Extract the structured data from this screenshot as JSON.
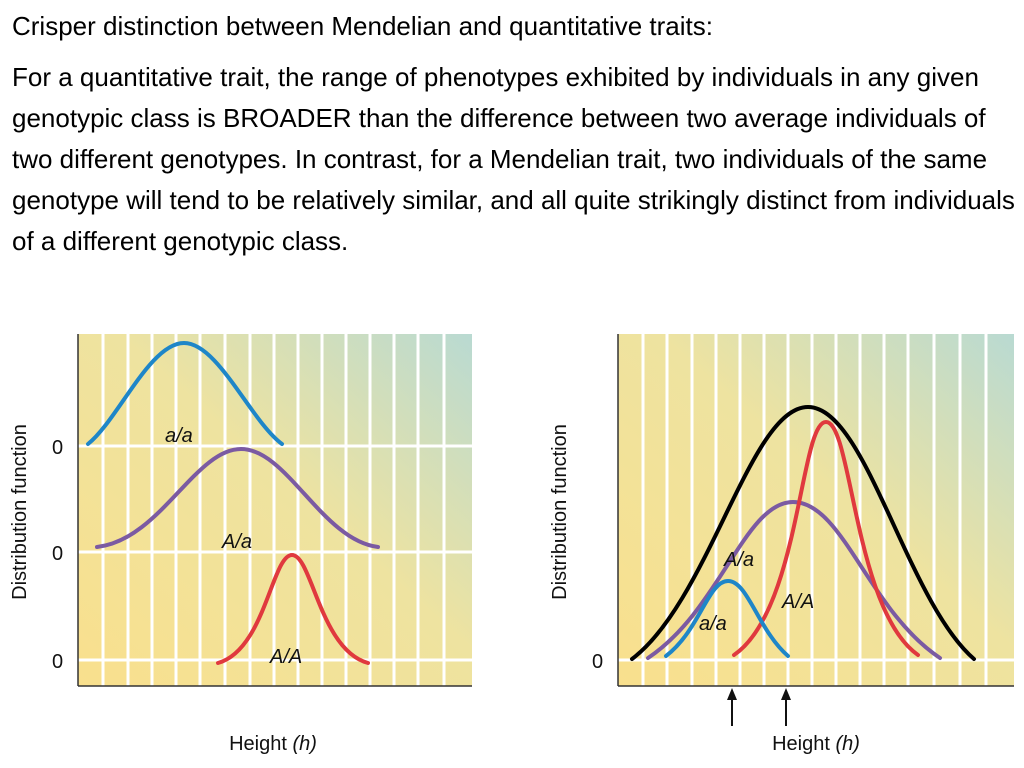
{
  "slide": {
    "title": "Crisper distinction between Mendelian and quantitative traits:",
    "paragraph": "For a quantitative trait, the range of phenotypes exhibited by individuals in any given genotypic class is BROADER than the difference between two average individuals of two different genotypes. In contrast, for a Mendelian trait, two individuals of the same genotype will tend to be relatively similar, and all quite strikingly distinct from individuals of a different genotypic class."
  },
  "left_panel": {
    "ylabel": "Distribution function",
    "xlabel_prefix": "Height ",
    "xlabel_var": "(h)",
    "zero_labels": [
      "0",
      "0",
      "0"
    ],
    "curves": [
      {
        "label": "a/a",
        "color": "#1e86c8"
      },
      {
        "label": "A/a",
        "color": "#7b5aa2"
      },
      {
        "label": "A/A",
        "color": "#e0393e"
      }
    ]
  },
  "right_panel": {
    "ylabel": "Distribution function",
    "xlabel_prefix": "Height ",
    "xlabel_var": "(h)",
    "zero_label": "0",
    "curves": [
      {
        "label": "A/a",
        "color": "#7b5aa2"
      },
      {
        "label": "A/A",
        "color": "#e0393e"
      },
      {
        "label": "a/a",
        "color": "#1e86c8"
      },
      {
        "label": "",
        "color": "#000000"
      }
    ]
  },
  "colors": {
    "grid_line": "#ffffff",
    "background_top": "#b9dad2",
    "background_bottom": "#f9e08d"
  }
}
